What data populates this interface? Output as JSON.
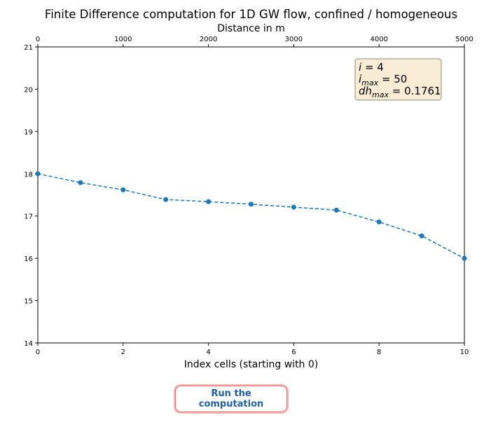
{
  "chart_data": {
    "type": "line",
    "title": "Finite Difference computation for 1D GW flow, confined / homogeneous",
    "xlabel": "Index cells (starting with 0)",
    "x2label": "Distance in m",
    "xlim": [
      0,
      10
    ],
    "ylim": [
      14,
      21
    ],
    "x2lim": [
      0,
      5000
    ],
    "xticks": [
      0,
      2,
      4,
      6,
      8,
      10
    ],
    "x2ticks": [
      0,
      1000,
      2000,
      3000,
      4000,
      5000
    ],
    "yticks": [
      14,
      15,
      16,
      17,
      18,
      19,
      20,
      21
    ],
    "grid": false,
    "color": "#1f77b4",
    "linestyle": "dashed",
    "marker": "circle",
    "x": [
      0,
      1,
      2,
      3,
      4,
      5,
      6,
      7,
      8,
      9,
      10
    ],
    "y": [
      18.0,
      17.79,
      17.62,
      17.39,
      17.34,
      17.28,
      17.21,
      17.14,
      16.86,
      16.53,
      16.0
    ],
    "annotation": {
      "placement": "top-right",
      "lines": [
        {
          "base": "i",
          "sub": "",
          "value": "= 4"
        },
        {
          "base": "i",
          "sub": "max",
          "value": "= 50"
        },
        {
          "base": "dh",
          "sub": "max",
          "value": "= 0.1761"
        }
      ]
    }
  },
  "button": {
    "label": "Run the computation"
  }
}
